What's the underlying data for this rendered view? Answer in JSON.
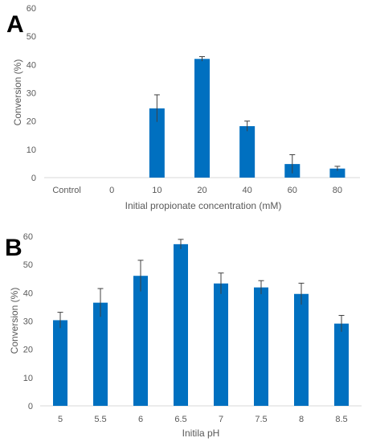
{
  "panels": [
    {
      "letter": "A",
      "chart_data": {
        "type": "bar",
        "categories": [
          "Control",
          "0",
          "10",
          "20",
          "40",
          "60",
          "80"
        ],
        "values": [
          0,
          0,
          24.5,
          42,
          18.2,
          4.8,
          3.2
        ],
        "errors": [
          0,
          0,
          4.8,
          0.8,
          1.8,
          3.3,
          0.8
        ],
        "xlabel": "Initial propionate concentration (mM)",
        "ylabel": "Conversion (%)",
        "ylim": [
          0,
          60
        ],
        "yticks": [
          0,
          10,
          20,
          30,
          40,
          50,
          60
        ],
        "bar_color": "#0070c0",
        "error_color": "#404040",
        "grid": false
      }
    },
    {
      "letter": "B",
      "chart_data": {
        "type": "bar",
        "categories": [
          "5",
          "5.5",
          "6",
          "6.5",
          "7",
          "7.5",
          "8",
          "8.5"
        ],
        "values": [
          30.3,
          36.5,
          46,
          57.2,
          43.3,
          41.9,
          39.6,
          29.1
        ],
        "errors": [
          2.8,
          5,
          5.5,
          1.7,
          3.7,
          2.4,
          3.8,
          2.9
        ],
        "xlabel": "Initila pH",
        "ylabel": "Conversion (%)",
        "ylim": [
          0,
          60
        ],
        "yticks": [
          0,
          10,
          20,
          30,
          40,
          50,
          60
        ],
        "bar_color": "#0070c0",
        "error_color": "#404040",
        "grid": false
      }
    }
  ]
}
